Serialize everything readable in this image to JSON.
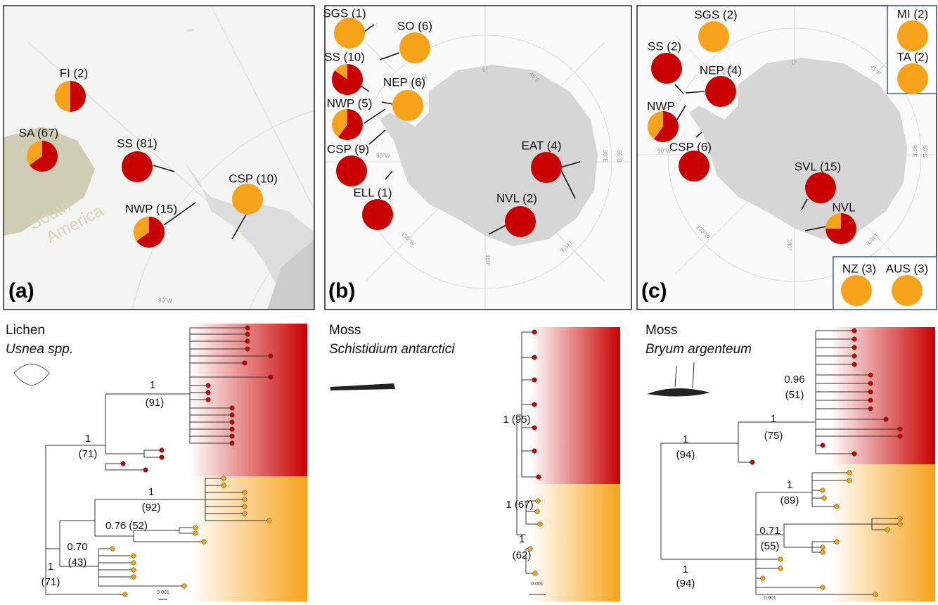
{
  "panels": [
    {
      "label": "(a)",
      "grid_labels": [
        "90°W"
      ],
      "region": "South\nAmerica",
      "pies": [
        {
          "label": "FI (2)",
          "orange_pct": 50
        },
        {
          "label": "SA (67)",
          "orange_pct": 35
        },
        {
          "label": "SS (81)",
          "orange_pct": 0
        },
        {
          "label": "NWP (15)",
          "orange_pct": 35
        },
        {
          "label": "CSP (10)",
          "orange_pct": 100
        }
      ]
    },
    {
      "label": "(b)",
      "grid_labels": [
        "0°",
        "45°E",
        "90°E",
        "135°E",
        "180°",
        "135°W",
        "90°W",
        "45°W",
        "60°S"
      ],
      "pies": [
        {
          "label": "SGS (1)",
          "orange_pct": 100
        },
        {
          "label": "SO (6)",
          "orange_pct": 100
        },
        {
          "label": "SS (10)",
          "orange_pct": 15
        },
        {
          "label": "NEP (6)",
          "orange_pct": 100
        },
        {
          "label": "NWP (5)",
          "orange_pct": 40
        },
        {
          "label": "CSP (9)",
          "orange_pct": 0
        },
        {
          "label": "ELL (1)",
          "orange_pct": 0
        },
        {
          "label": "EAT (4)",
          "orange_pct": 0
        },
        {
          "label": "NVL (2)",
          "orange_pct": 0
        }
      ]
    },
    {
      "label": "(c)",
      "grid_labels": [
        "0°",
        "45°E",
        "90°E",
        "135°E",
        "180°",
        "135°W",
        "90°W",
        "45°W",
        "60°S"
      ],
      "pies": [
        {
          "label": "SGS (2)",
          "orange_pct": 100
        },
        {
          "label": "SS (2)",
          "orange_pct": 0
        },
        {
          "label": "NEP (4)",
          "orange_pct": 0
        },
        {
          "label": "NWP",
          "orange_pct": 40
        },
        {
          "label": "CSP (6)",
          "orange_pct": 0
        },
        {
          "label": "SVL (15)",
          "orange_pct": 0
        },
        {
          "label": "NVL",
          "orange_pct": 25
        },
        {
          "label": "MI (2)",
          "orange_pct": 100
        },
        {
          "label": "TA (2)",
          "orange_pct": 100
        },
        {
          "label": "NZ (3)",
          "orange_pct": 100
        },
        {
          "label": "AUS (3)",
          "orange_pct": 100
        }
      ]
    }
  ],
  "trees": [
    {
      "group": "Lichen",
      "taxon": "Usnea spp.",
      "node_labels": [
        "1",
        "(91)",
        "1",
        "(71)",
        "1",
        "(92)",
        "0.76 (52)",
        "0.70",
        "(43)",
        "1",
        "(71)"
      ],
      "scale": "0.001"
    },
    {
      "group": "Moss",
      "taxon": "Schistidium antarctici",
      "node_labels": [
        "1 (95)",
        "1 (67)",
        "1",
        "(62)"
      ],
      "scale": "0.001"
    },
    {
      "group": "Moss",
      "taxon": "Bryum argenteum",
      "node_labels": [
        "0.96",
        "(51)",
        "1",
        "(75)",
        "1",
        "(94)",
        "1",
        "(89)",
        "0.71",
        "(55)",
        "1",
        "(94)"
      ],
      "scale": "0.001"
    }
  ],
  "colors": {
    "red": "#c80000",
    "orange": "#f7a21b"
  }
}
